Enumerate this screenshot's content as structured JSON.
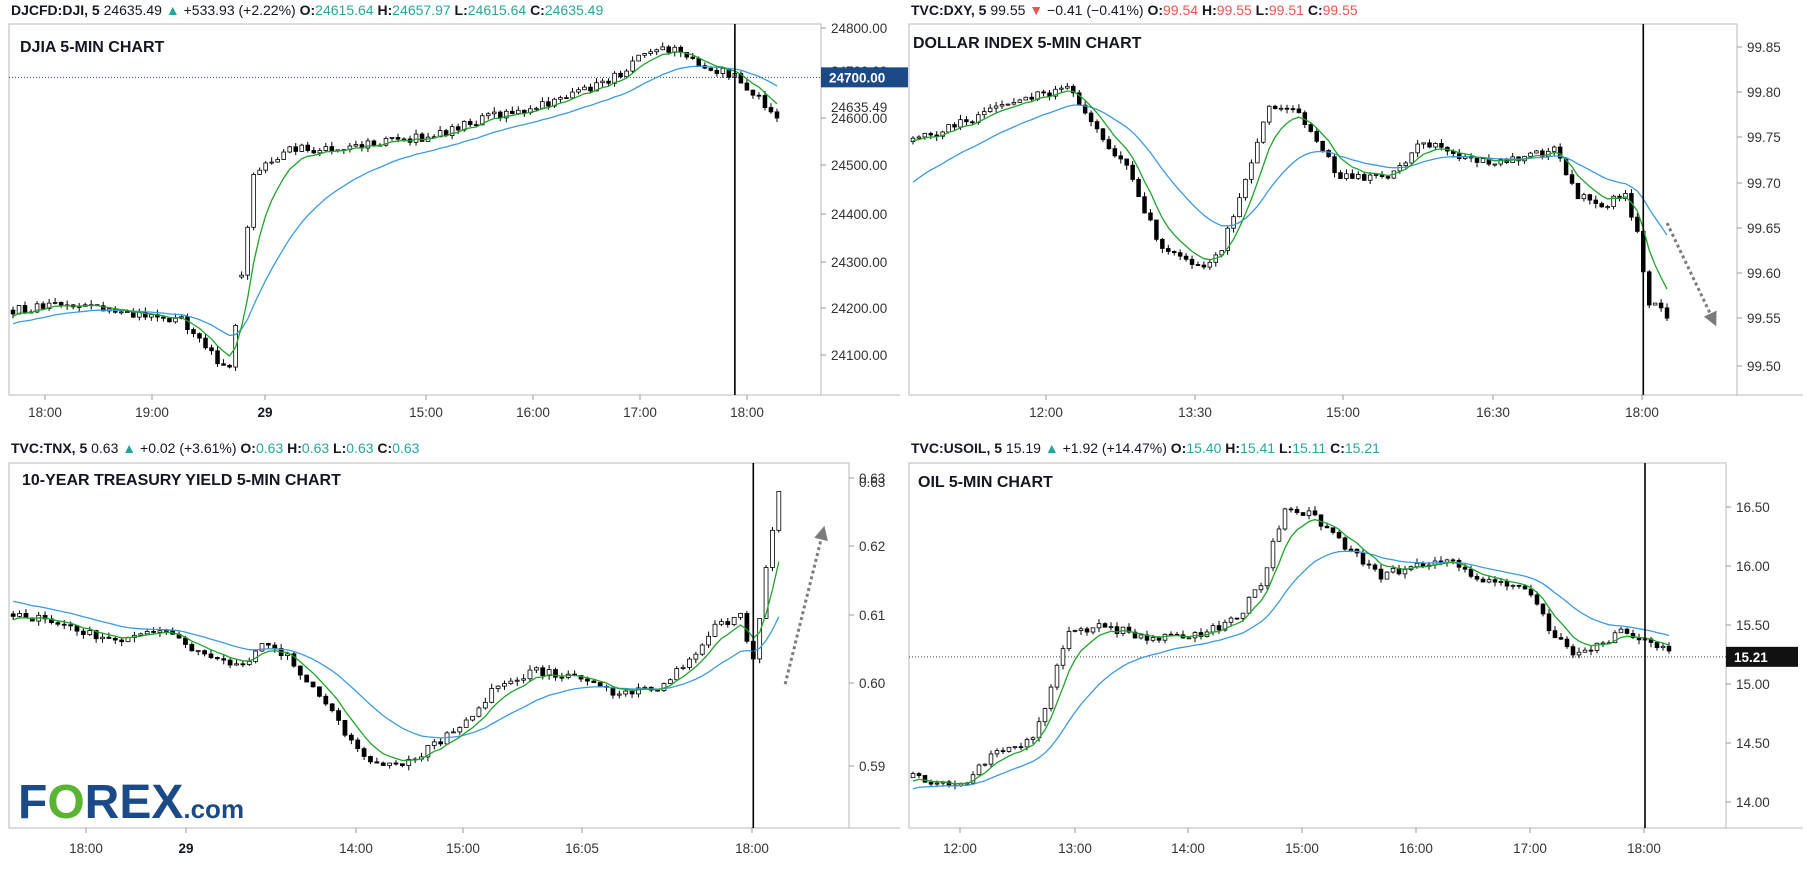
{
  "colors": {
    "up": "#26a69a",
    "down": "#ef5350",
    "ema_fast": "#1fa32c",
    "ema_slow": "#3d9ae0",
    "candle_dark": "#000000",
    "arrow": "#7b7b7b",
    "price_tag": "#1c4a87",
    "logo_blue": "#1c4a87",
    "logo_green": "#5bb431"
  },
  "logo": {
    "prefix": "F",
    "middle": "O",
    "suffix": "REX",
    "tld": ".com"
  },
  "chart_data": [
    {
      "type": "candlestick",
      "title": "DJIA 5-MIN CHART",
      "header": {
        "symbol": "DJCFD:DJI, 5",
        "last": "24635.49",
        "dir": "up",
        "change": "+533.93 (+2.22%)",
        "o_label": "O:",
        "o": "24615.64",
        "h_label": "H:",
        "h": "24657.97",
        "l_label": "L:",
        "l": "24615.64",
        "c_label": "C:",
        "c": "24635.49"
      },
      "x_ticks": [
        "18:00",
        "19:00",
        "29",
        "15:00",
        "16:00",
        "17:00",
        "18:00"
      ],
      "y_ticks": [
        "24800.00",
        "24700.00",
        "24600.00",
        "24500.00",
        "24400.00",
        "24300.00",
        "24200.00",
        "24100.00"
      ],
      "ylim": [
        24045,
        24810
      ],
      "price_tag": "24700.00",
      "last_label": "24635.49",
      "anchors": [
        [
          0,
          24220
        ],
        [
          12,
          24232
        ],
        [
          18,
          24212
        ],
        [
          28,
          24198
        ],
        [
          33,
          24130
        ],
        [
          36,
          24095
        ],
        [
          40,
          24500
        ],
        [
          46,
          24550
        ],
        [
          58,
          24560
        ],
        [
          70,
          24580
        ],
        [
          80,
          24620
        ],
        [
          90,
          24650
        ],
        [
          100,
          24700
        ],
        [
          105,
          24750
        ],
        [
          110,
          24760
        ],
        [
          112,
          24735
        ],
        [
          116,
          24720
        ],
        [
          120,
          24700
        ],
        [
          127,
          24620
        ]
      ],
      "n": 128,
      "gap_after": 37,
      "vline_index": 120,
      "arrow": null,
      "ema_fast_start": 24205,
      "ema_slow_start": 24190
    },
    {
      "type": "candlestick",
      "title": "DOLLAR INDEX 5-MIN CHART",
      "header": {
        "symbol": "TVC:DXY, 5",
        "last": "99.55",
        "dir": "down",
        "change": "−0.41 (−0.41%)",
        "o_label": "O:",
        "o": "99.54",
        "h_label": "H:",
        "h": "99.55",
        "l_label": "L:",
        "l": "99.51",
        "c_label": "C:",
        "c": "99.55"
      },
      "x_ticks": [
        "12:00",
        "13:30",
        "15:00",
        "16:30",
        "18:00"
      ],
      "y_ticks": [
        "99.85",
        "99.80",
        "99.75",
        "99.70",
        "99.65",
        "99.60",
        "99.55",
        "99.50"
      ],
      "ylim": [
        99.46,
        99.87
      ],
      "price_tag": null,
      "last_label": null,
      "anchors": [
        [
          0,
          99.74
        ],
        [
          8,
          99.76
        ],
        [
          20,
          99.79
        ],
        [
          26,
          99.8
        ],
        [
          30,
          99.76
        ],
        [
          36,
          99.71
        ],
        [
          42,
          99.62
        ],
        [
          48,
          99.6
        ],
        [
          52,
          99.62
        ],
        [
          56,
          99.7
        ],
        [
          60,
          99.78
        ],
        [
          64,
          99.78
        ],
        [
          68,
          99.74
        ],
        [
          72,
          99.7
        ],
        [
          80,
          99.7
        ],
        [
          86,
          99.74
        ],
        [
          92,
          99.72
        ],
        [
          100,
          99.72
        ],
        [
          108,
          99.73
        ],
        [
          112,
          99.68
        ],
        [
          116,
          99.67
        ],
        [
          120,
          99.68
        ],
        [
          122,
          99.64
        ],
        [
          124,
          99.56
        ],
        [
          126,
          99.56
        ],
        [
          127,
          99.54
        ]
      ],
      "n": 128,
      "gap_after": null,
      "vline_index": 123,
      "arrow": [
        [
          127,
          99.65
        ],
        [
          135,
          99.54
        ]
      ],
      "ema_fast_start": 99.74,
      "ema_slow_start": 99.69
    },
    {
      "type": "candlestick",
      "title": "10-YEAR TREASURY YIELD 5-MIN CHART",
      "header": {
        "symbol": "TVC:TNX, 5",
        "last": "0.63",
        "dir": "up",
        "change": "+0.02 (+3.61%)",
        "o_label": "O:",
        "o": "0.63",
        "h_label": "H:",
        "h": "0.63",
        "l_label": "L:",
        "l": "0.63",
        "c_label": "C:",
        "c": "0.63"
      },
      "x_ticks": [
        "18:00",
        "29",
        "14:00",
        "15:00",
        "16:05",
        "18:00"
      ],
      "y_ticks": [
        "0.63",
        "0.62",
        "0.61",
        "0.60",
        "0.59"
      ],
      "ylim": [
        0.5815,
        0.6335
      ],
      "price_tag": null,
      "last_label": "0.63",
      "anchors": [
        [
          0,
          0.612
        ],
        [
          10,
          0.61
        ],
        [
          16,
          0.608
        ],
        [
          24,
          0.61
        ],
        [
          30,
          0.606
        ],
        [
          36,
          0.605
        ],
        [
          40,
          0.608
        ],
        [
          44,
          0.605
        ],
        [
          48,
          0.6
        ],
        [
          54,
          0.593
        ],
        [
          58,
          0.59
        ],
        [
          64,
          0.592
        ],
        [
          70,
          0.596
        ],
        [
          76,
          0.602
        ],
        [
          82,
          0.604
        ],
        [
          88,
          0.603
        ],
        [
          94,
          0.601
        ],
        [
          100,
          0.601
        ],
        [
          106,
          0.605
        ],
        [
          110,
          0.61
        ],
        [
          114,
          0.612
        ],
        [
          116,
          0.605
        ],
        [
          118,
          0.618
        ],
        [
          120,
          0.63
        ]
      ],
      "n": 121,
      "gap_after": null,
      "vline_index": 116,
      "arrow": [
        [
          121,
          0.602
        ],
        [
          127,
          0.624
        ]
      ],
      "ema_fast_start": 0.611,
      "ema_slow_start": 0.614
    },
    {
      "type": "candlestick",
      "title": "OIL 5-MIN CHART",
      "header": {
        "symbol": "TVC:USOIL, 5",
        "last": "15.19",
        "dir": "up",
        "change": "+1.92 (+14.47%)",
        "o_label": "O:",
        "o": "15.40",
        "h_label": "H:",
        "h": "15.41",
        "l_label": "L:",
        "l": "15.11",
        "c_label": "C:",
        "c": "15.21"
      },
      "x_ticks": [
        "12:00",
        "13:00",
        "14:00",
        "15:00",
        "16:00",
        "17:00",
        "18:00"
      ],
      "y_ticks": [
        "16.50",
        "16.00",
        "15.50",
        "15.00",
        "14.50",
        "14.00"
      ],
      "ylim": [
        13.85,
        16.75
      ],
      "price_tag": "15.21",
      "last_label": null,
      "anchors": [
        [
          0,
          14.25
        ],
        [
          8,
          14.2
        ],
        [
          14,
          14.45
        ],
        [
          20,
          14.55
        ],
        [
          26,
          15.4
        ],
        [
          32,
          15.45
        ],
        [
          40,
          15.35
        ],
        [
          48,
          15.4
        ],
        [
          54,
          15.5
        ],
        [
          58,
          15.8
        ],
        [
          62,
          16.4
        ],
        [
          66,
          16.35
        ],
        [
          72,
          16.1
        ],
        [
          78,
          15.85
        ],
        [
          84,
          15.95
        ],
        [
          90,
          15.95
        ],
        [
          96,
          15.8
        ],
        [
          102,
          15.75
        ],
        [
          106,
          15.45
        ],
        [
          110,
          15.2
        ],
        [
          114,
          15.3
        ],
        [
          118,
          15.4
        ],
        [
          122,
          15.35
        ],
        [
          126,
          15.25
        ]
      ],
      "n": 127,
      "gap_after": null,
      "vline_index": 122,
      "arrow": null,
      "ema_fast_start": 14.2,
      "ema_slow_start": 14.15
    }
  ]
}
